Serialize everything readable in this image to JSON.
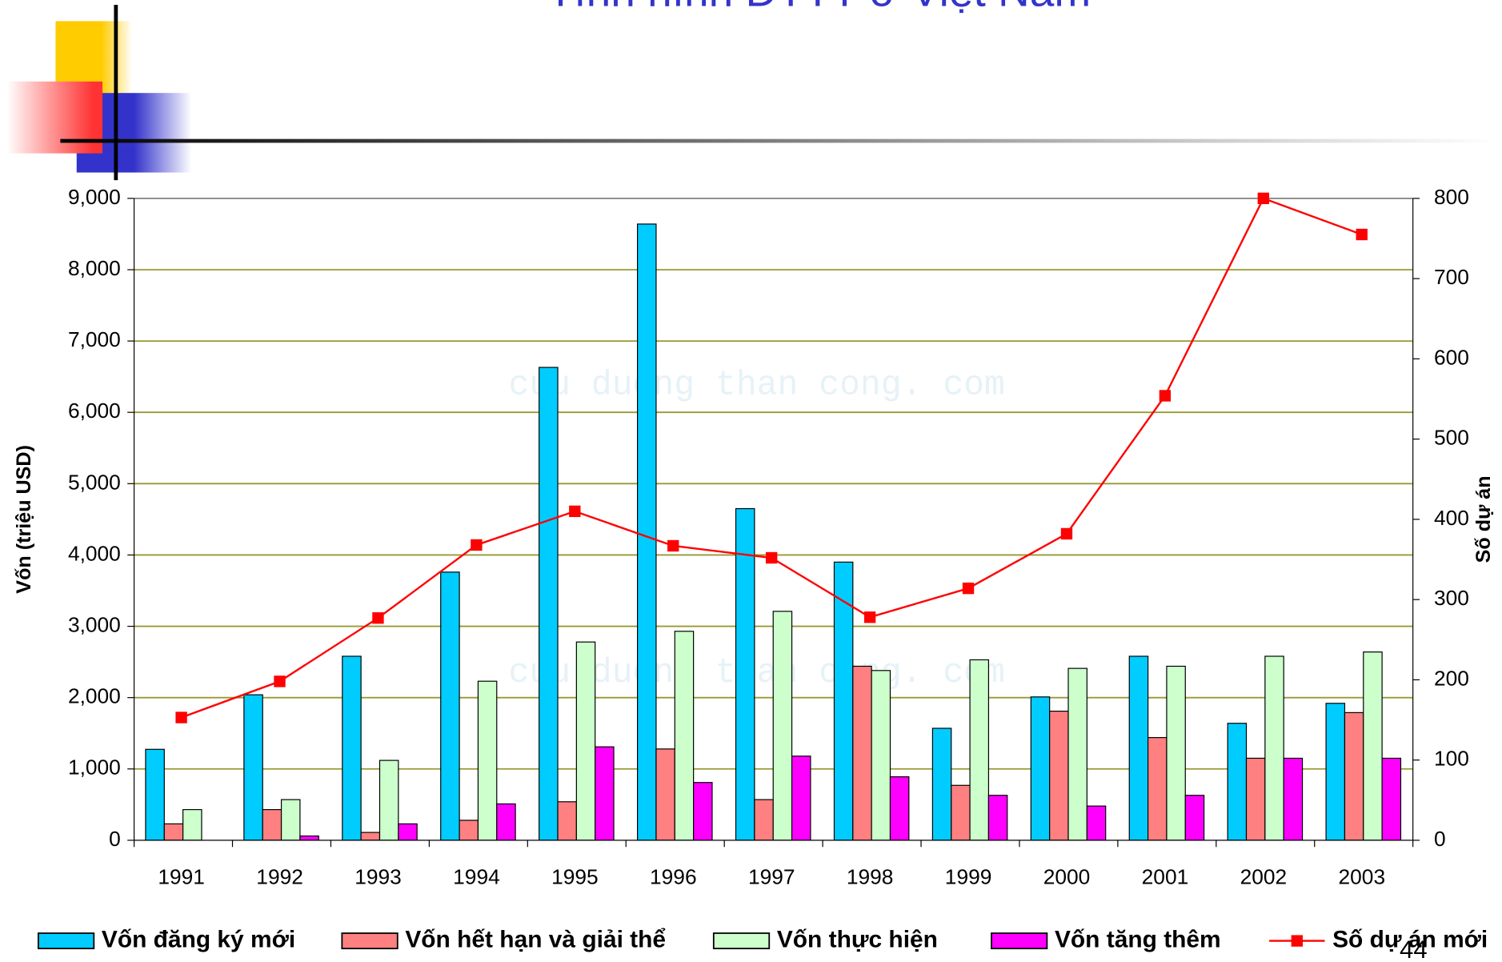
{
  "page_number": "44",
  "chart_data": {
    "type": "bar",
    "title": "Tình hình ĐTTT ở Việt Nam",
    "y_label": "Vốn (triệu USD)",
    "y2_label": "Số dự án",
    "watermark": "cuu duong than cong. com",
    "categories": [
      "1991",
      "1992",
      "1993",
      "1994",
      "1995",
      "1996",
      "1997",
      "1998",
      "1999",
      "2000",
      "2001",
      "2002",
      "2003"
    ],
    "series": [
      {
        "name": "Vốn đăng ký mới",
        "color": "#00ccff",
        "type": "bar",
        "values": [
          1275,
          2040,
          2580,
          3760,
          6630,
          8640,
          4650,
          3900,
          1570,
          2010,
          2580,
          1640,
          1920
        ]
      },
      {
        "name": "Vốn hết hạn và giải thể",
        "color": "#ff8080",
        "type": "bar",
        "values": [
          230,
          430,
          110,
          280,
          540,
          1280,
          570,
          2440,
          770,
          1810,
          1440,
          1150,
          1790
        ]
      },
      {
        "name": "Vốn thực hiện",
        "color": "#ccffcc",
        "type": "bar",
        "values": [
          430,
          570,
          1120,
          2230,
          2780,
          2930,
          3210,
          2380,
          2530,
          2410,
          2440,
          2580,
          2640
        ]
      },
      {
        "name": "Vốn tăng thêm",
        "color": "#ff00ff",
        "type": "bar",
        "values": [
          0,
          60,
          230,
          510,
          1310,
          810,
          1180,
          890,
          630,
          480,
          630,
          1150,
          1150
        ]
      },
      {
        "name": "Số dự án mới",
        "color": "#ff0000",
        "type": "line",
        "axis": "y2",
        "values": [
          153,
          198,
          277,
          368,
          410,
          367,
          352,
          278,
          314,
          382,
          554,
          800,
          755
        ]
      }
    ],
    "ylim": [
      0,
      9000
    ],
    "yticks": [
      0,
      {
        "value": 1000,
        "label": "1,000"
      },
      {
        "value": 2000,
        "label": "2,000"
      },
      {
        "value": 3000,
        "label": "3,000"
      },
      {
        "value": 4000,
        "label": "4,000"
      },
      {
        "value": 5000,
        "label": "5,000"
      },
      {
        "value": 6000,
        "label": "6,000"
      },
      {
        "value": 7000,
        "label": "7,000"
      },
      {
        "value": 8000,
        "label": "8,000"
      },
      {
        "value": 9000,
        "label": "9,000"
      }
    ],
    "y2lim": [
      0,
      800
    ],
    "y2ticks": [
      0,
      100,
      200,
      300,
      400,
      500,
      600,
      700,
      800
    ],
    "grid": true,
    "legend": "bottom"
  }
}
